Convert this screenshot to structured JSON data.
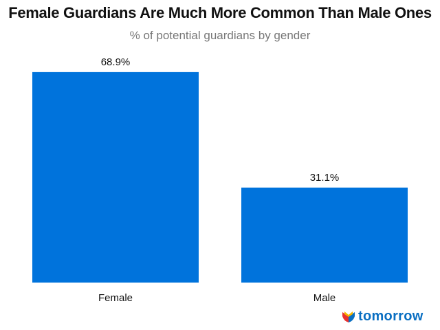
{
  "chart_data": {
    "type": "bar",
    "title": "Female Guardians Are Much More Common Than Male Ones",
    "subtitle": "% of potential guardians by gender",
    "categories": [
      "Female",
      "Male"
    ],
    "values": [
      68.9,
      31.1
    ],
    "data_labels": [
      "68.9%",
      "31.1%"
    ],
    "xlabel": "",
    "ylabel": "",
    "ylim": [
      0,
      70
    ],
    "grid": false,
    "bar_color": "#0073dc"
  },
  "brand": {
    "name": "tomorrow",
    "logo_colors": [
      "#e8312f",
      "#f5b400",
      "#0a6fc2"
    ]
  }
}
